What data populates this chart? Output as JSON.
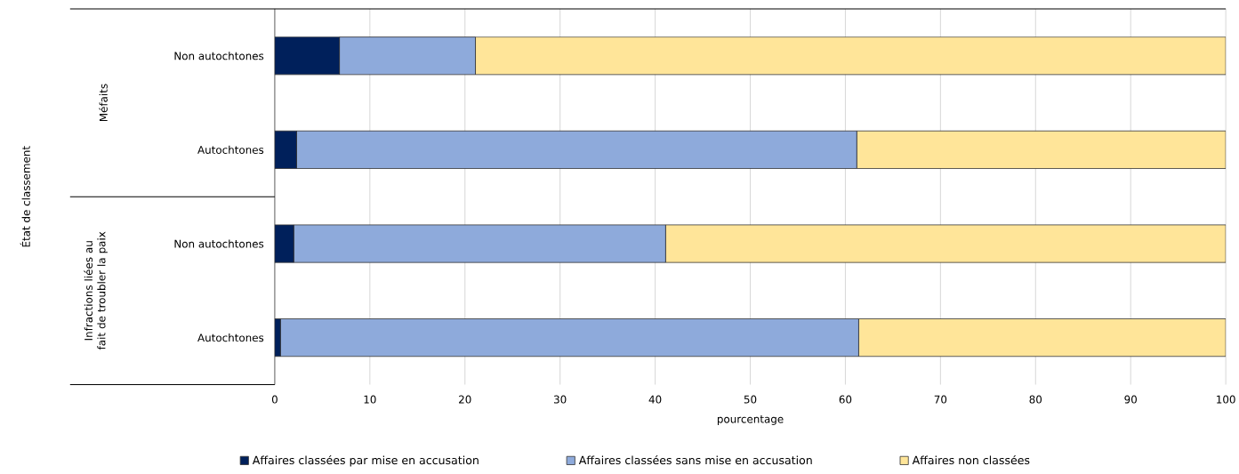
{
  "chart_data": {
    "type": "bar",
    "orientation": "horizontal",
    "stacked": true,
    "categories": [
      "Non autochtones",
      "Autochtones",
      "Non autochtones",
      "Autochtones"
    ],
    "series": [
      {
        "name": "Affaires classées par mise en accusation",
        "color": "#00205b",
        "values": [
          6.8,
          2.3,
          2.0,
          0.6
        ]
      },
      {
        "name": "Affaires classées sans mise en accusation",
        "color": "#8eaadb",
        "values": [
          14.3,
          58.9,
          39.1,
          60.8
        ]
      },
      {
        "name": "Affaires non classées",
        "color": "#ffe599",
        "values": [
          78.9,
          38.8,
          58.9,
          38.6
        ]
      }
    ],
    "xlim": [
      0,
      100
    ],
    "xticks": [
      0,
      10,
      20,
      30,
      40,
      50,
      60,
      70,
      80,
      90,
      100
    ],
    "xlabel": "pourcentage",
    "annotations": [
      "État de classement",
      "Méfaits",
      "Infractions liées au fait de troubler la paix"
    ],
    "grid": "x",
    "legend": "bottom"
  }
}
